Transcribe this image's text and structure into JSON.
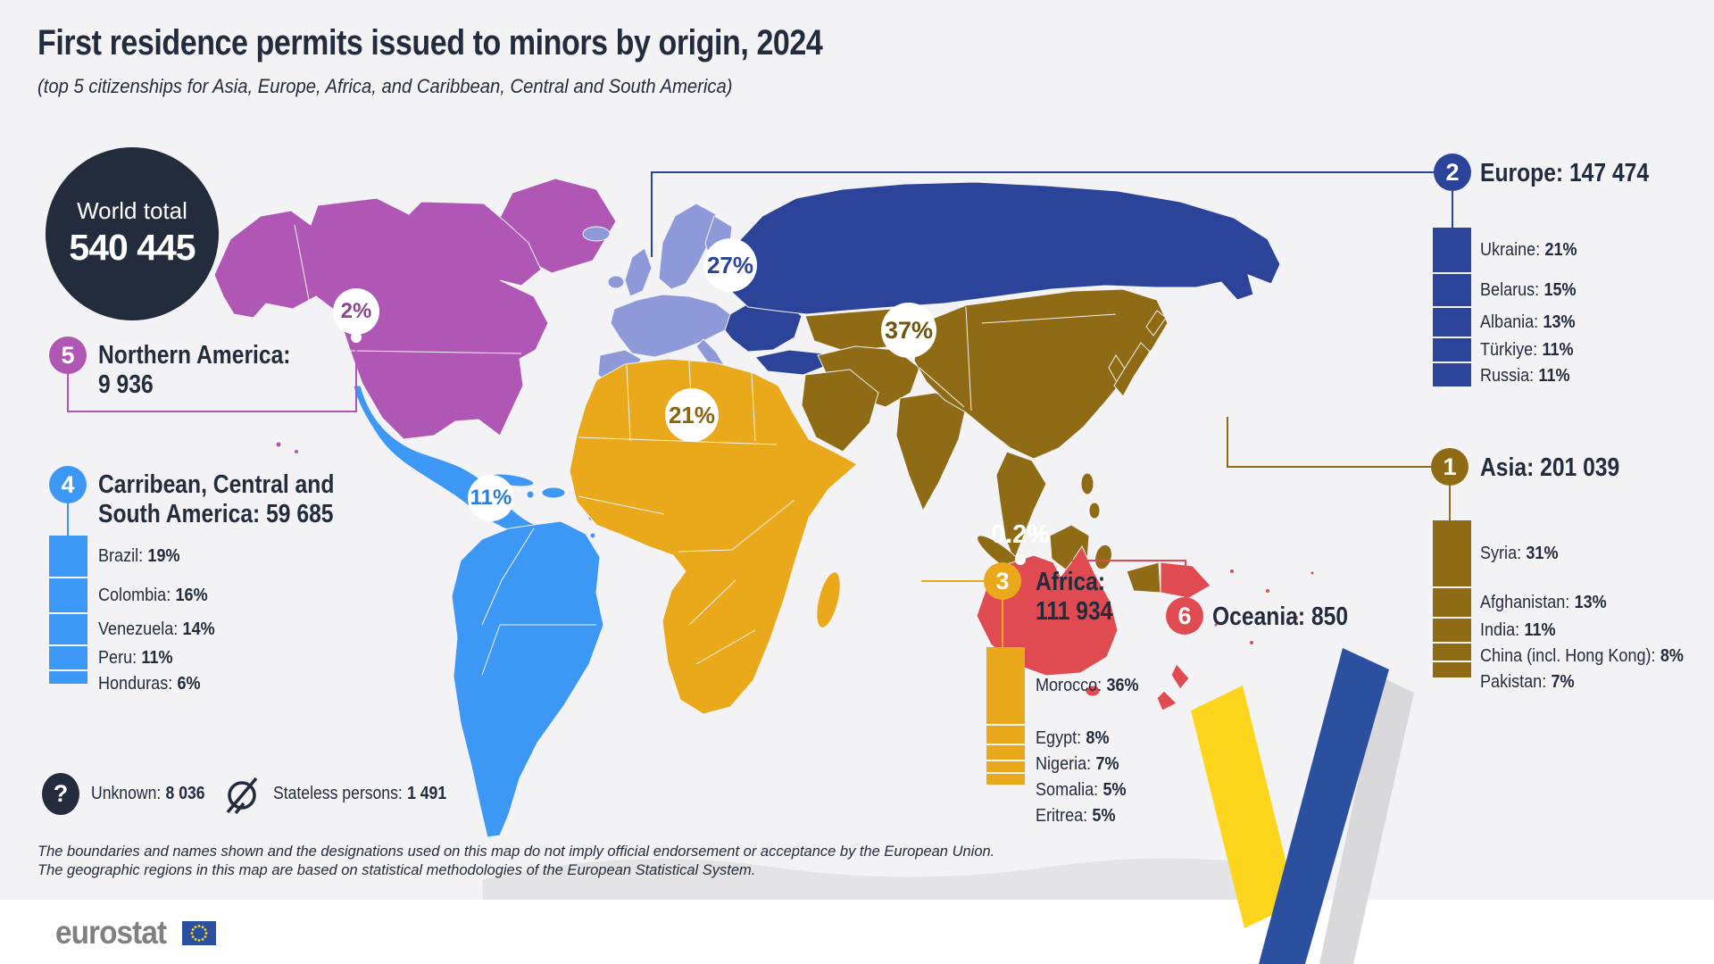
{
  "title": "First residence permits issued to minors by origin, 2024",
  "subtitle": "(top 5 citizenships for Asia, Europe, Africa, and Caribbean, Central and South America)",
  "world_total": {
    "label": "World total",
    "value": "540 445"
  },
  "regions": {
    "asia": {
      "rank": "1",
      "header": "Asia: 201 039",
      "map_share": "37%",
      "color": "#8e6b14",
      "countries": [
        {
          "name": "Syria:",
          "share": "31%",
          "pct": 31
        },
        {
          "name": "Afghanistan:",
          "share": "13%",
          "pct": 13
        },
        {
          "name": "India:",
          "share": "11%",
          "pct": 11
        },
        {
          "name": "China (incl. Hong Kong):",
          "share": "8%",
          "pct": 8
        },
        {
          "name": "Pakistan:",
          "share": "7%",
          "pct": 7
        }
      ]
    },
    "europe": {
      "rank": "2",
      "header": "Europe: 147 474",
      "map_share": "27%",
      "color": "#2b4398",
      "countries": [
        {
          "name": "Ukraine:",
          "share": "21%",
          "pct": 21
        },
        {
          "name": "Belarus:",
          "share": "15%",
          "pct": 15
        },
        {
          "name": "Albania:",
          "share": "13%",
          "pct": 13
        },
        {
          "name": "Türkiye:",
          "share": "11%",
          "pct": 11
        },
        {
          "name": "Russia:",
          "share": "11%",
          "pct": 11
        }
      ]
    },
    "africa": {
      "rank": "3",
      "header_line1": "Africa:",
      "header_line2": "111 934",
      "map_share": "21%",
      "color": "#e9a91a",
      "countries": [
        {
          "name": "Morocco:",
          "share": "36%",
          "pct": 36
        },
        {
          "name": "Egypt:",
          "share": "8%",
          "pct": 8
        },
        {
          "name": "Nigeria:",
          "share": "7%",
          "pct": 7
        },
        {
          "name": "Somalia:",
          "share": "5%",
          "pct": 5
        },
        {
          "name": "Eritrea:",
          "share": "5%",
          "pct": 5
        }
      ]
    },
    "csa": {
      "rank": "4",
      "header_line1": "Carribean, Central and",
      "header_line2": "South America: 59 685",
      "map_share": "11%",
      "color": "#3d97f5",
      "countries": [
        {
          "name": "Brazil:",
          "share": "19%",
          "pct": 19
        },
        {
          "name": "Colombia:",
          "share": "16%",
          "pct": 16
        },
        {
          "name": "Venezuela:",
          "share": "14%",
          "pct": 14
        },
        {
          "name": "Peru:",
          "share": "11%",
          "pct": 11
        },
        {
          "name": "Honduras:",
          "share": "6%",
          "pct": 6
        }
      ]
    },
    "northern_america": {
      "rank": "5",
      "header_line1": "Northern America:",
      "header_line2": "9 936",
      "map_share": "2%",
      "color": "#b057b5"
    },
    "oceania": {
      "rank": "6",
      "header": "Oceania: 850",
      "map_share": "0.2%",
      "color": "#e04b52"
    }
  },
  "footnotes": {
    "unknown_icon_glyph": "?",
    "unknown_label": "Unknown:",
    "unknown_value": "8 036",
    "stateless_label": "Stateless persons:",
    "stateless_value": "1 491"
  },
  "disclaimer_line1": "The boundaries and names shown and the designations used on this map do not imply official endorsement or acceptance by the European Union.",
  "disclaimer_line2": "The geographic regions in this map are based on statistical methodologies of the European Statistical System.",
  "logo_text": "eurostat",
  "colors": {
    "background": "#f3f3f5",
    "text_navy": "#232c3d",
    "asia": "#8e6b14",
    "europe_dark": "#2b4398",
    "europe_eu_light": "#8d99d8",
    "africa": "#e9a91a",
    "caribbean_south_america": "#3d97f5",
    "northern_america": "#b057b5",
    "oceania": "#e04b52",
    "badge_background": "#ffffff",
    "eu_flag_blue": "#2c50a0",
    "star_gold": "#ffd617",
    "logo_gray": "#7f7f85"
  }
}
